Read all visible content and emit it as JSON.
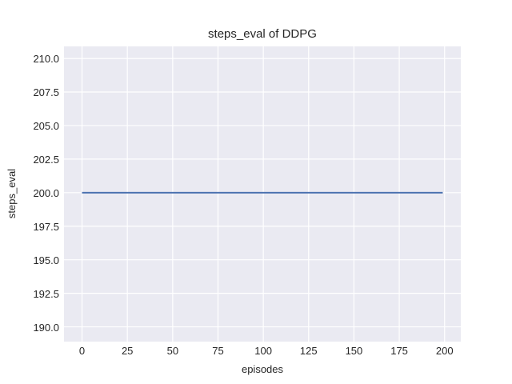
{
  "chart_data": {
    "type": "line",
    "title": "steps_eval of DDPG",
    "xlabel": "episodes",
    "ylabel": "steps_eval",
    "x_ticks": [
      0,
      25,
      50,
      75,
      100,
      125,
      150,
      175,
      200
    ],
    "x_tick_labels": [
      "0",
      "25",
      "50",
      "75",
      "100",
      "125",
      "150",
      "175",
      "200"
    ],
    "y_ticks": [
      190.0,
      192.5,
      195.0,
      197.5,
      200.0,
      202.5,
      205.0,
      207.5,
      210.0
    ],
    "y_tick_labels": [
      "190.0",
      "192.5",
      "195.0",
      "197.5",
      "200.0",
      "202.5",
      "205.0",
      "207.5",
      "210.0"
    ],
    "xlim": [
      -9.95,
      208.95
    ],
    "ylim": [
      188.9,
      210.9
    ],
    "grid": true,
    "legend": false,
    "plot_background": "#eaeaf2",
    "grid_color": "#ffffff",
    "series": [
      {
        "name": "steps_eval",
        "color": "#4c72b0",
        "x": [
          0,
          199
        ],
        "y": [
          200.0,
          200.0
        ]
      }
    ]
  }
}
